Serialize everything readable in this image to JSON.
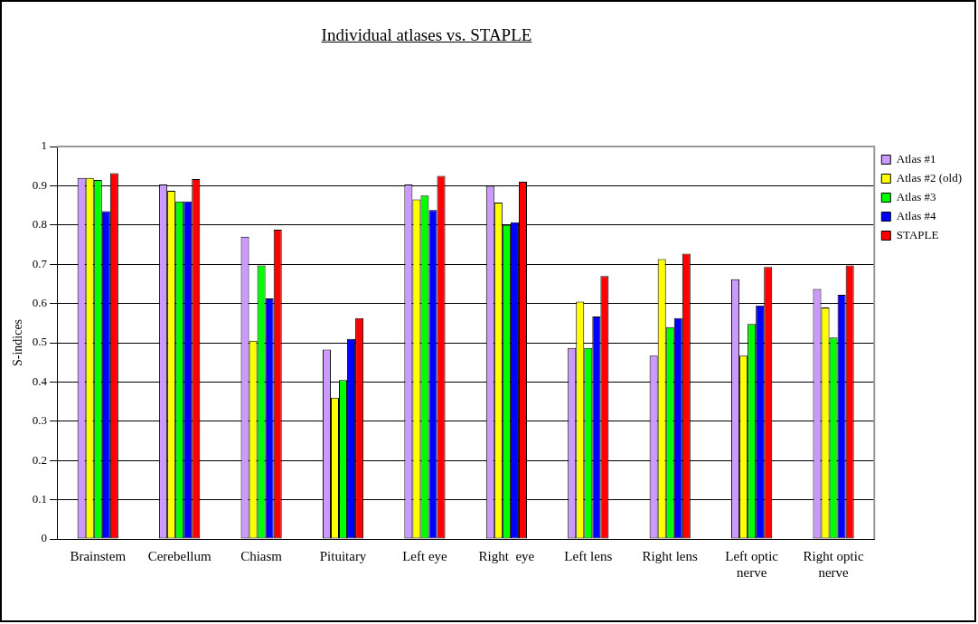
{
  "chart_data": {
    "type": "bar",
    "title": "Individual atlases vs. STAPLE",
    "ylabel": "S-indices",
    "categories": [
      "Brainstem",
      "Cerebellum",
      "Chiasm",
      "Pituitary",
      "Left eye",
      "Right  eye",
      "Left lens",
      "Right lens",
      "Left optic nerve",
      "Right optic nerve"
    ],
    "series": [
      {
        "name": "Atlas #1",
        "color": "#cc99ff",
        "values": [
          0.92,
          0.903,
          0.77,
          0.483,
          0.903,
          0.9,
          0.487,
          0.467,
          0.662,
          0.637
        ]
      },
      {
        "name": "Atlas #2 (old)",
        "color": "#ffff00",
        "values": [
          0.92,
          0.887,
          0.505,
          0.36,
          0.865,
          0.857,
          0.605,
          0.713,
          0.467,
          0.59
        ]
      },
      {
        "name": "Atlas #3",
        "color": "#00ff00",
        "values": [
          0.915,
          0.86,
          0.697,
          0.405,
          0.875,
          0.8,
          0.487,
          0.54,
          0.548,
          0.513
        ]
      },
      {
        "name": "Atlas #4",
        "color": "#0000ff",
        "values": [
          0.835,
          0.86,
          0.613,
          0.51,
          0.838,
          0.807,
          0.567,
          0.563,
          0.595,
          0.622
        ]
      },
      {
        "name": "STAPLE",
        "color": "#ff0000",
        "values": [
          0.932,
          0.917,
          0.788,
          0.563,
          0.925,
          0.91,
          0.67,
          0.727,
          0.693,
          0.697
        ]
      }
    ],
    "ylim": [
      0,
      1
    ],
    "yticks": [
      0,
      0.1,
      0.2,
      0.3,
      0.4,
      0.5,
      0.6,
      0.7,
      0.8,
      0.9,
      1
    ],
    "grid": "y",
    "legend": "top right"
  }
}
